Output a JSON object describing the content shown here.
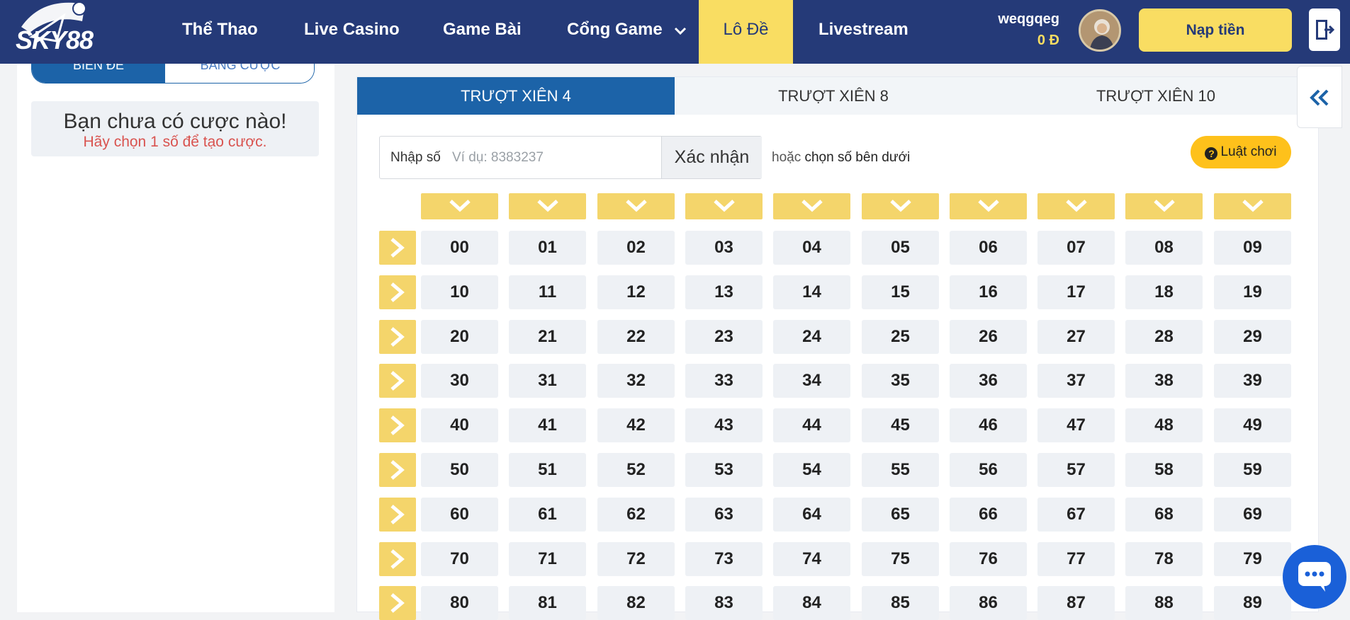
{
  "header": {
    "logo_text": "SKY88",
    "nav": [
      {
        "label": "Thể Thao"
      },
      {
        "label": "Live Casino"
      },
      {
        "label": "Game Bài"
      },
      {
        "label": "Cổng Game"
      },
      {
        "label": "Lô Đề"
      },
      {
        "label": "Livestream"
      }
    ],
    "username": "weqgqeg",
    "balance": "0 Đ",
    "deposit_label": "Nạp tiền"
  },
  "left": {
    "tabs": [
      "Biên Đề",
      "Bảng Cược"
    ],
    "empty_title": "Bạn chưa có cược nào!",
    "empty_sub": "Hãy chọn 1 số để tạo cược."
  },
  "main": {
    "tabs": [
      "Trượt Xiên 4",
      "Trượt Xiên 8",
      "Trượt Xiên 10"
    ],
    "active_tab": 0,
    "input_label": "Nhập số",
    "input_placeholder": "Ví dụ: 8383237",
    "confirm_label": "Xác nhận",
    "or_text": "hoặc",
    "or_bold": "chọn số bên dưới",
    "rules_label": "Luật chơi",
    "rows": [
      [
        "00",
        "01",
        "02",
        "03",
        "04",
        "05",
        "06",
        "07",
        "08",
        "09"
      ],
      [
        "10",
        "11",
        "12",
        "13",
        "14",
        "15",
        "16",
        "17",
        "18",
        "19"
      ],
      [
        "20",
        "21",
        "22",
        "23",
        "24",
        "25",
        "26",
        "27",
        "28",
        "29"
      ],
      [
        "30",
        "31",
        "32",
        "33",
        "34",
        "35",
        "36",
        "37",
        "38",
        "39"
      ],
      [
        "40",
        "41",
        "42",
        "43",
        "44",
        "45",
        "46",
        "47",
        "48",
        "49"
      ],
      [
        "50",
        "51",
        "52",
        "53",
        "54",
        "55",
        "56",
        "57",
        "58",
        "59"
      ],
      [
        "60",
        "61",
        "62",
        "63",
        "64",
        "65",
        "66",
        "67",
        "68",
        "69"
      ],
      [
        "70",
        "71",
        "72",
        "73",
        "74",
        "75",
        "76",
        "77",
        "78",
        "79"
      ],
      [
        "80",
        "81",
        "82",
        "83",
        "84",
        "85",
        "86",
        "87",
        "88",
        "89"
      ]
    ]
  },
  "colors": {
    "header_bg": "#253a78",
    "accent_yellow": "#f9dd62",
    "tab_active_blue": "#1c63a8",
    "chat_blue": "#1a60d8"
  }
}
